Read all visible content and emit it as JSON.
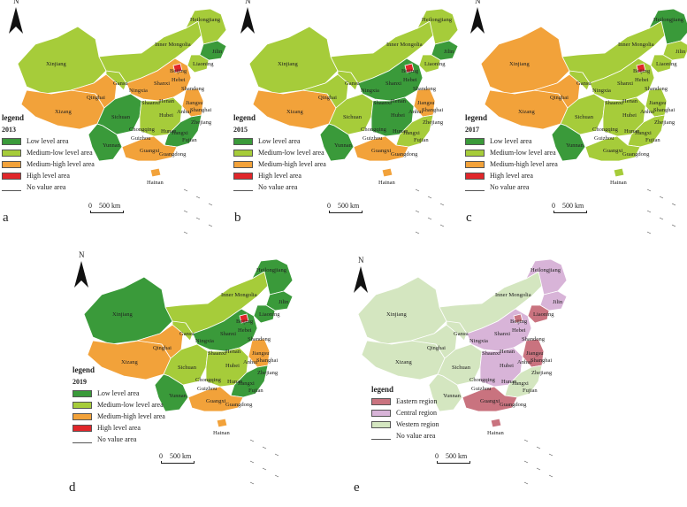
{
  "panels": [
    {
      "letter": "a",
      "year": "2013",
      "legend_title": "legend",
      "legend": [
        {
          "label": "Low level area",
          "color": "#3a9a3a"
        },
        {
          "label": "Medium-low level area",
          "color": "#a6cc3a"
        },
        {
          "label": "Medium-high level area",
          "color": "#f2a23a"
        },
        {
          "label": "High level area",
          "color": "#e0262a"
        },
        {
          "label": "No value area",
          "color": "#ffffff"
        }
      ],
      "scale": "0    500 km",
      "north": "N"
    },
    {
      "letter": "b",
      "year": "2015",
      "legend_title": "legend",
      "legend": [
        {
          "label": "Low level area",
          "color": "#3a9a3a"
        },
        {
          "label": "Medium-low level area",
          "color": "#a6cc3a"
        },
        {
          "label": "Medium-high level area",
          "color": "#f2a23a"
        },
        {
          "label": "High level area",
          "color": "#e0262a"
        },
        {
          "label": "No value area",
          "color": "#ffffff"
        }
      ],
      "scale": "0    500 km",
      "north": "N"
    },
    {
      "letter": "c",
      "year": "2017",
      "legend_title": "legend",
      "legend": [
        {
          "label": "Low level area",
          "color": "#3a9a3a"
        },
        {
          "label": "Medium-low level area",
          "color": "#a6cc3a"
        },
        {
          "label": "Medium-high level area",
          "color": "#f2a23a"
        },
        {
          "label": "High level area",
          "color": "#e0262a"
        },
        {
          "label": "No value area",
          "color": "#ffffff"
        }
      ],
      "scale": "0    500 km",
      "north": "N"
    },
    {
      "letter": "d",
      "year": "2019",
      "legend_title": "legend",
      "legend": [
        {
          "label": "Low level area",
          "color": "#3a9a3a"
        },
        {
          "label": "Medium-low level area",
          "color": "#a6cc3a"
        },
        {
          "label": "Medium-high level area",
          "color": "#f2a23a"
        },
        {
          "label": "High level area",
          "color": "#e0262a"
        },
        {
          "label": "No value area",
          "color": "#ffffff"
        }
      ],
      "scale": "0    500 km",
      "north": "N"
    },
    {
      "letter": "e",
      "year": "",
      "legend_title": "legend",
      "legend": [
        {
          "label": "Eastern region",
          "color": "#c9737f"
        },
        {
          "label": "Central region",
          "color": "#d8b4d8"
        },
        {
          "label": "Western region",
          "color": "#d4e6c0"
        },
        {
          "label": "No value area",
          "color": "#ffffff"
        }
      ],
      "scale": "0    500 km",
      "north": "N"
    }
  ],
  "province_labels": {
    "heilongjiang": "Heilongjiang",
    "jilin": "Jilin",
    "liaoning": "Liaoning",
    "inner_mongolia": "Inner Mongolia",
    "xinjiang": "Xinjiang",
    "beijing": "Beijing",
    "hebei": "Hebei",
    "shandong": "Shandong",
    "shanxi": "Shanxi",
    "gansu": "Gansu",
    "ningxia": "Ningxia",
    "qinghai": "Qinghai",
    "shaanxi": "Shaanxi",
    "henan": "Henan",
    "jiangsu": "Jiangsu",
    "shanghai": "Shanghai",
    "xizang": "Xizang",
    "sichuan": "Sichuan",
    "hubei": "Hubei",
    "anhui": "Anhui",
    "zhejiang": "Zhejiang",
    "chongqing": "Chongqing",
    "guizhou": "Guizhou",
    "hunan": "Hunan",
    "jiangxi": "Jiangxi",
    "fujian": "Fujian",
    "yunnan": "Yunnan",
    "guangxi": "Guangxi",
    "guangdong": "Guangdong",
    "hainan": "Hainan"
  },
  "map_colors": {
    "panel_a": {
      "xinjiang": "#a6cc3a",
      "xizang": "#f2a23a",
      "qinghai": "#f2a23a",
      "gansu": "#a6cc3a",
      "inner_mongolia": "#a6cc3a",
      "heilongjiang": "#a6cc3a",
      "jilin": "#3a9a3a",
      "liaoning": "#a6cc3a",
      "north_china": "#f2a23a",
      "sichuan": "#3a9a3a",
      "yunnan": "#3a9a3a",
      "central": "#a6cc3a",
      "southeast": "#3a9a3a",
      "guangdong": "#f2a23a",
      "east_coast": "#f2a23a",
      "beijing": "#e0262a"
    },
    "panel_b": {
      "xinjiang": "#a6cc3a",
      "xizang": "#f2a23a",
      "qinghai": "#a6cc3a",
      "gansu": "#a6cc3a",
      "inner_mongolia": "#a6cc3a",
      "heilongjiang": "#a6cc3a",
      "jilin": "#3a9a3a",
      "liaoning": "#a6cc3a",
      "north_china": "#3a9a3a",
      "sichuan": "#a6cc3a",
      "yunnan": "#3a9a3a",
      "central": "#3a9a3a",
      "southeast": "#a6cc3a",
      "guangdong": "#f2a23a",
      "east_coast": "#f2a23a",
      "beijing": "#e0262a"
    },
    "panel_c": {
      "xinjiang": "#f2a23a",
      "xizang": "#f2a23a",
      "qinghai": "#f2a23a",
      "gansu": "#a6cc3a",
      "inner_mongolia": "#a6cc3a",
      "heilongjiang": "#3a9a3a",
      "jilin": "#a6cc3a",
      "liaoning": "#a6cc3a",
      "north_china": "#a6cc3a",
      "sichuan": "#a6cc3a",
      "yunnan": "#3a9a3a",
      "central": "#a6cc3a",
      "southeast": "#a6cc3a",
      "guangdong": "#a6cc3a",
      "east_coast": "#a6cc3a",
      "beijing": "#e0262a"
    },
    "panel_d": {
      "xinjiang": "#3a9a3a",
      "xizang": "#f2a23a",
      "qinghai": "#f2a23a",
      "gansu": "#a6cc3a",
      "inner_mongolia": "#a6cc3a",
      "heilongjiang": "#3a9a3a",
      "jilin": "#3a9a3a",
      "liaoning": "#3a9a3a",
      "north_china": "#3a9a3a",
      "sichuan": "#a6cc3a",
      "yunnan": "#3a9a3a",
      "central": "#a6cc3a",
      "southeast": "#3a9a3a",
      "guangdong": "#f2a23a",
      "east_coast": "#f2a23a",
      "beijing": "#e0262a"
    },
    "panel_e": {
      "xinjiang": "#d4e6c0",
      "xizang": "#d4e6c0",
      "qinghai": "#d4e6c0",
      "gansu": "#d4e6c0",
      "inner_mongolia": "#d4e6c0",
      "heilongjiang": "#d8b4d8",
      "jilin": "#d8b4d8",
      "liaoning": "#c9737f",
      "north_china": "#d8b4d8",
      "sichuan": "#d4e6c0",
      "yunnan": "#d4e6c0",
      "central": "#d8b4d8",
      "southeast": "#d4e6c0",
      "guangdong": "#c9737f",
      "east_coast": "#c9737f",
      "beijing": "#c9737f"
    }
  }
}
